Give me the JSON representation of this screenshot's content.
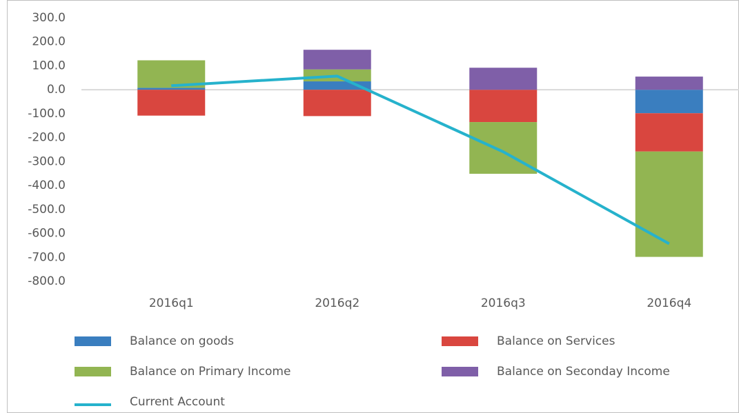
{
  "chart_data": {
    "type": "bar",
    "stacked": true,
    "categories": [
      "2016q1",
      "2016q2",
      "2016q3",
      "2016q4"
    ],
    "series": [
      {
        "name": "Balance on goods",
        "color": "#3a7ebf",
        "values": [
          8,
          35,
          0,
          -98
        ]
      },
      {
        "name": "Balance on Services",
        "color": "#d9463f",
        "values": [
          -108,
          -110,
          -135,
          -160
        ]
      },
      {
        "name": "Balance on Primary Income",
        "color": "#92b552",
        "values": [
          115,
          50,
          -216,
          -440
        ]
      },
      {
        "name": "Balance on Seconday Income",
        "color": "#7f5fa8",
        "values": [
          0,
          82,
          92,
          55
        ]
      },
      {
        "name": "Current Account",
        "color": "#26b2cc",
        "type": "line",
        "values": [
          17,
          57,
          -259,
          -643
        ]
      }
    ],
    "ylim": [
      -800,
      300
    ],
    "yticks": [
      {
        "value": 300,
        "label": "300.0"
      },
      {
        "value": 200,
        "label": "200.0"
      },
      {
        "value": 100,
        "label": "100.0"
      },
      {
        "value": 0,
        "label": "0.0"
      },
      {
        "value": -100,
        "label": "-100.0"
      },
      {
        "value": -200,
        "label": "-200.0"
      },
      {
        "value": -300,
        "label": "-300.0"
      },
      {
        "value": -400,
        "label": "-400.0"
      },
      {
        "value": -500,
        "label": "-500.0"
      },
      {
        "value": -600,
        "label": "-600.0"
      },
      {
        "value": -700,
        "label": "-700.0"
      },
      {
        "value": -800,
        "label": "-800.0"
      }
    ],
    "legend": "bottom"
  }
}
